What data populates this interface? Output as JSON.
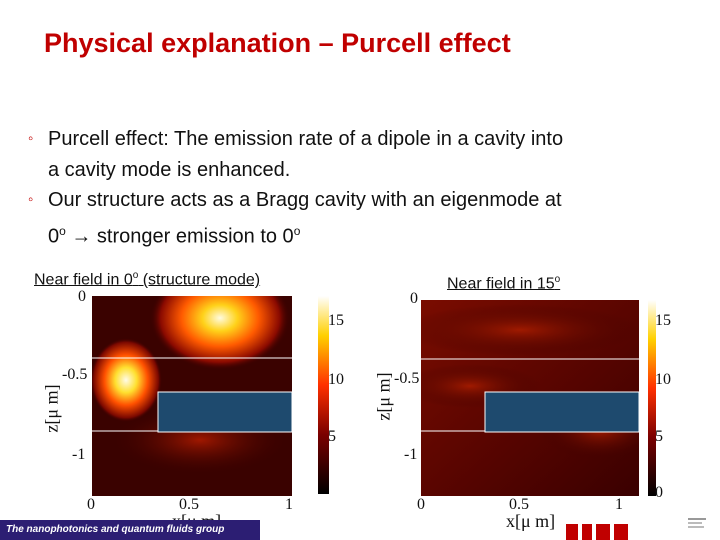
{
  "slide": {
    "title": "Physical explanation – Purcell effect",
    "bullets": [
      {
        "line1": "Purcell effect: The emission rate of a dipole in a cavity into",
        "line2": "a cavity mode is enhanced."
      },
      {
        "line1": "Our structure acts as a Bragg cavity with an eigenmode at",
        "line2_a": "0",
        "line2_sup1": "o",
        "line2_b": " → stronger emission to 0",
        "line2_sup2": "o"
      }
    ],
    "footer_text": "The nanophotonics and quantum fluids group"
  },
  "plots": {
    "left": {
      "caption_a": "Near field in 0",
      "caption_sup": "o",
      "caption_b": " (structure mode)",
      "xlabel": "x[μ m]",
      "ylabel": "z[μ m]",
      "xticks": [
        "0",
        "0.5",
        "1"
      ],
      "yticks": [
        "0",
        "-0.5",
        "-1"
      ],
      "cbar_ticks": [
        "15",
        "10",
        "5"
      ]
    },
    "right": {
      "caption_a": "Near field in 15",
      "caption_sup": "o",
      "xlabel": "x[μ m]",
      "ylabel": "z[μ m]",
      "xticks": [
        "0",
        "0.5",
        "1"
      ],
      "yticks": [
        "0",
        "-0.5",
        "-1"
      ],
      "cbar_ticks": [
        "15",
        "10",
        "5",
        "0"
      ]
    }
  },
  "colors": {
    "title": "#c00000",
    "structure": "#1e4a6e",
    "footer": "#2c1e73"
  }
}
